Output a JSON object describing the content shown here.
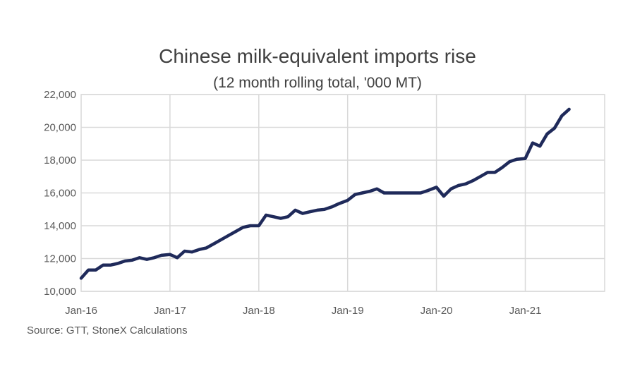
{
  "chart_data": {
    "type": "line",
    "title": "Chinese milk-equivalent imports rise",
    "subtitle": "(12 month rolling total, '000 MT)",
    "source": "Source: GTT, StoneX Calculations",
    "xlabel": "",
    "ylabel": "",
    "ylim": [
      10000,
      22000
    ],
    "yticks": [
      10000,
      12000,
      14000,
      16000,
      18000,
      20000,
      22000
    ],
    "ytick_labels": [
      "10,000",
      "12,000",
      "14,000",
      "16,000",
      "18,000",
      "20,000",
      "22,000"
    ],
    "xticks": [
      "Jan-16",
      "Jan-17",
      "Jan-18",
      "Jan-19",
      "Jan-20",
      "Jan-21"
    ],
    "grid": true,
    "color": "#1f2a5a",
    "series": [
      {
        "x": [
          "Jan-16",
          "Feb-16",
          "Mar-16",
          "Apr-16",
          "May-16",
          "Jun-16",
          "Jul-16",
          "Aug-16",
          "Sep-16",
          "Oct-16",
          "Nov-16",
          "Dec-16",
          "Jan-17",
          "Feb-17",
          "Mar-17",
          "Apr-17",
          "May-17",
          "Jun-17",
          "Jul-17",
          "Aug-17",
          "Sep-17",
          "Oct-17",
          "Nov-17",
          "Dec-17",
          "Jan-18",
          "Feb-18",
          "Mar-18",
          "Apr-18",
          "May-18",
          "Jun-18",
          "Jul-18",
          "Aug-18",
          "Sep-18",
          "Oct-18",
          "Nov-18",
          "Dec-18",
          "Jan-19",
          "Feb-19",
          "Mar-19",
          "Apr-19",
          "May-19",
          "Jun-19",
          "Jul-19",
          "Aug-19",
          "Sep-19",
          "Oct-19",
          "Nov-19",
          "Dec-19",
          "Jan-20",
          "Feb-20",
          "Mar-20",
          "Apr-20",
          "May-20",
          "Jun-20",
          "Jul-20",
          "Aug-20",
          "Sep-20",
          "Oct-20",
          "Nov-20",
          "Dec-20",
          "Jan-21",
          "Feb-21",
          "Mar-21",
          "Apr-21",
          "May-21",
          "Jun-21",
          "Jul-21"
        ],
        "values": [
          10800,
          11300,
          11300,
          11600,
          11600,
          11700,
          11850,
          11900,
          12050,
          11950,
          12050,
          12200,
          12250,
          12050,
          12450,
          12400,
          12550,
          12650,
          12900,
          13150,
          13400,
          13650,
          13900,
          14000,
          14000,
          14650,
          14550,
          14450,
          14550,
          14950,
          14750,
          14850,
          14950,
          15000,
          15150,
          15350,
          15550,
          15900,
          16000,
          16100,
          16250,
          16000,
          16000,
          16000,
          16000,
          16000,
          16000,
          16150,
          16350,
          15800,
          16250,
          16450,
          16550,
          16750,
          17000,
          17250,
          17250,
          17550,
          17900,
          18050,
          18100,
          19050,
          18850,
          19600,
          19950,
          20700,
          21100
        ]
      }
    ]
  }
}
